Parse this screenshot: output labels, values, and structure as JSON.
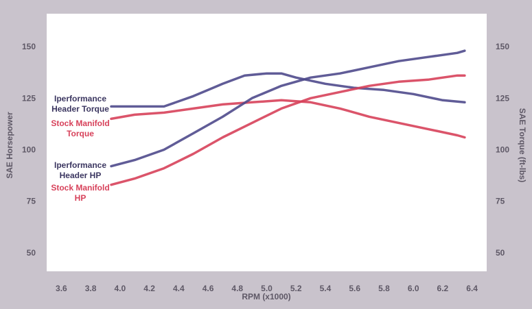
{
  "chart_data": {
    "type": "line",
    "xlabel": "RPM (x1000)",
    "ylabel_left": "SAE Horsepower",
    "ylabel_right": "SAE Torque (ft-lbs)",
    "x_ticks": [
      "3.6",
      "3.8",
      "4.0",
      "4.2",
      "4.4",
      "4.6",
      "4.8",
      "5.0",
      "5.2",
      "5.4",
      "5.6",
      "5.8",
      "6.0",
      "6.2",
      "6.4"
    ],
    "y_ticks_left": [
      "150",
      "125",
      "100",
      "75",
      "50"
    ],
    "y_ticks_right": [
      "150",
      "125",
      "100",
      "75",
      "50"
    ],
    "xlim": [
      3.5,
      6.5
    ],
    "ylim": [
      41,
      166
    ],
    "grid": false,
    "series": [
      {
        "name": "Iperformance Header Torque",
        "color": "#4f4a8c",
        "x": [
          3.94,
          4.1,
          4.3,
          4.5,
          4.7,
          4.85,
          5.0,
          5.1,
          5.2,
          5.4,
          5.6,
          5.8,
          6.0,
          6.2,
          6.35
        ],
        "y": [
          121,
          121,
          121,
          126,
          132,
          136,
          137,
          137,
          135,
          132,
          130,
          129,
          127,
          124,
          123
        ]
      },
      {
        "name": "Stock Manifold Torque",
        "color": "#d7415a",
        "x": [
          3.94,
          4.1,
          4.3,
          4.5,
          4.7,
          4.9,
          5.1,
          5.3,
          5.5,
          5.7,
          5.9,
          6.1,
          6.3,
          6.35
        ],
        "y": [
          115,
          117,
          118,
          120,
          122,
          123,
          124,
          123,
          120,
          116,
          113,
          110,
          107,
          106
        ]
      },
      {
        "name": "Iperformance Header HP",
        "color": "#4f4a8c",
        "x": [
          3.94,
          4.1,
          4.3,
          4.5,
          4.7,
          4.9,
          5.1,
          5.3,
          5.5,
          5.7,
          5.9,
          6.1,
          6.3,
          6.35
        ],
        "y": [
          92,
          95,
          100,
          108,
          116,
          125,
          131,
          135,
          137,
          140,
          143,
          145,
          147,
          148
        ]
      },
      {
        "name": "Stock Manifold HP",
        "color": "#d7415a",
        "x": [
          3.94,
          4.1,
          4.3,
          4.5,
          4.7,
          4.9,
          5.1,
          5.3,
          5.5,
          5.7,
          5.9,
          6.1,
          6.3,
          6.35
        ],
        "y": [
          83,
          86,
          91,
          98,
          106,
          113,
          120,
          125,
          128,
          131,
          133,
          134,
          136,
          136
        ]
      }
    ],
    "labels": [
      {
        "lines": [
          "Iperformance",
          "Header Torque"
        ],
        "color": "#3b3660"
      },
      {
        "lines": [
          "Stock Manifold",
          "Torque"
        ],
        "color": "#d7415a"
      },
      {
        "lines": [
          "Iperformance",
          "Header HP"
        ],
        "color": "#3b3660"
      },
      {
        "lines": [
          "Stock Manifold",
          "HP"
        ],
        "color": "#d7415a"
      }
    ]
  }
}
